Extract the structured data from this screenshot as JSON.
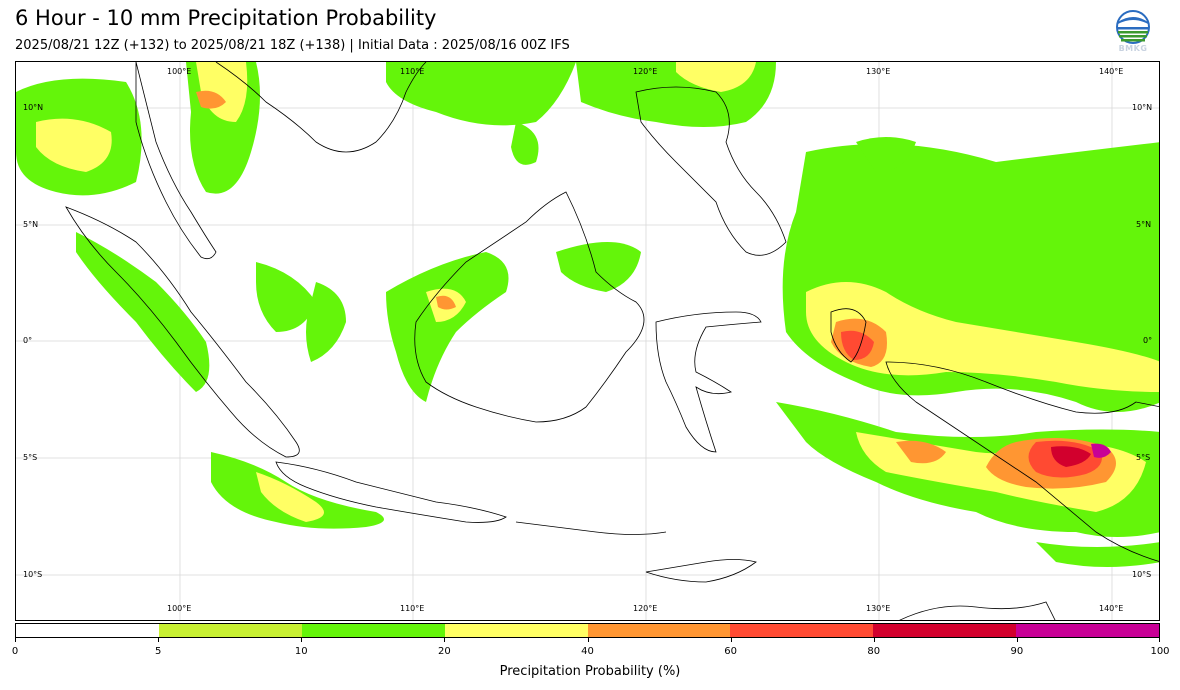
{
  "header": {
    "title": "6 Hour - 10 mm Precipitation Probability",
    "subtitle": "2025/08/21 12Z (+132) to 2025/08/21 18Z (+138) | Initial Data : 2025/08/16 00Z IFS",
    "logo_text": "BMKG"
  },
  "map": {
    "lon_labels": [
      "100°E",
      "110°E",
      "120°E",
      "130°E",
      "140°E"
    ],
    "lat_labels_left": [
      "10°N",
      "5°N",
      "0°",
      "5°S",
      "10°S"
    ],
    "lat_labels_right": [
      "10°N",
      "5°N",
      "0°",
      "5°S",
      "10°S"
    ],
    "extent": {
      "lon": [
        93,
        142
      ],
      "lat": [
        -12,
        12
      ]
    },
    "gridlines": true
  },
  "colorbar": {
    "title": "Precipitation Probability (%)",
    "ticks": [
      "0",
      "5",
      "10",
      "20",
      "40",
      "60",
      "80",
      "90",
      "100"
    ],
    "colors": [
      "#ffffff",
      "#c8f032",
      "#64f50a",
      "#ffff64",
      "#ff9632",
      "#ff4a32",
      "#d2002d",
      "#c80096"
    ]
  }
}
